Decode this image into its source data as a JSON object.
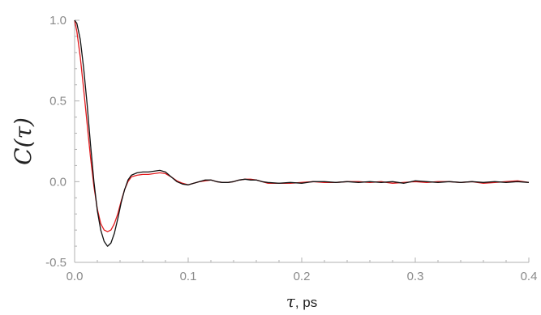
{
  "chart_data": {
    "type": "line",
    "title": "",
    "xlabel": "τ, ps",
    "ylabel": "C(τ)",
    "xlim": [
      0.0,
      0.4
    ],
    "ylim": [
      -0.5,
      1.0
    ],
    "xticks": [
      "0.0",
      "0.1",
      "0.2",
      "0.3",
      "0.4"
    ],
    "yticks": [
      "-0.5",
      "0.0",
      "0.5",
      "1.0"
    ],
    "grid": false,
    "legend": "none",
    "series": [
      {
        "color": "#111111",
        "x": [
          0.0,
          0.002,
          0.005,
          0.008,
          0.011,
          0.014,
          0.017,
          0.02,
          0.023,
          0.026,
          0.029,
          0.032,
          0.035,
          0.038,
          0.041,
          0.044,
          0.047,
          0.05,
          0.055,
          0.06,
          0.065,
          0.07,
          0.075,
          0.08,
          0.085,
          0.09,
          0.095,
          0.1,
          0.105,
          0.11,
          0.115,
          0.12,
          0.125,
          0.13,
          0.135,
          0.14,
          0.145,
          0.15,
          0.155,
          0.16,
          0.165,
          0.17,
          0.18,
          0.19,
          0.2,
          0.21,
          0.22,
          0.23,
          0.24,
          0.25,
          0.26,
          0.27,
          0.28,
          0.29,
          0.3,
          0.31,
          0.32,
          0.33,
          0.34,
          0.35,
          0.36,
          0.37,
          0.38,
          0.39,
          0.4
        ],
        "y": [
          1.0,
          0.98,
          0.88,
          0.7,
          0.48,
          0.23,
          0.0,
          -0.18,
          -0.3,
          -0.37,
          -0.4,
          -0.38,
          -0.32,
          -0.23,
          -0.13,
          -0.05,
          0.01,
          0.04,
          0.055,
          0.06,
          0.06,
          0.065,
          0.07,
          0.06,
          0.03,
          0.0,
          -0.015,
          -0.02,
          -0.01,
          0.0,
          0.01,
          0.01,
          0.0,
          -0.005,
          -0.005,
          0.0,
          0.01,
          0.015,
          0.01,
          0.01,
          0.0,
          -0.005,
          -0.01,
          -0.005,
          -0.01,
          0.0,
          0.0,
          -0.005,
          0.0,
          -0.005,
          0.0,
          -0.005,
          0.0,
          -0.01,
          0.005,
          0.0,
          -0.005,
          0.0,
          -0.005,
          0.0,
          -0.005,
          0.0,
          -0.005,
          0.0,
          -0.005
        ]
      },
      {
        "color": "#e3191c",
        "x": [
          0.0,
          0.002,
          0.005,
          0.008,
          0.011,
          0.014,
          0.017,
          0.02,
          0.023,
          0.026,
          0.029,
          0.032,
          0.035,
          0.038,
          0.041,
          0.044,
          0.047,
          0.05,
          0.055,
          0.06,
          0.065,
          0.07,
          0.075,
          0.08,
          0.085,
          0.09,
          0.095,
          0.1,
          0.105,
          0.11,
          0.115,
          0.12,
          0.125,
          0.13,
          0.135,
          0.14,
          0.145,
          0.15,
          0.155,
          0.16,
          0.165,
          0.17,
          0.18,
          0.19,
          0.2,
          0.21,
          0.22,
          0.23,
          0.24,
          0.25,
          0.26,
          0.27,
          0.28,
          0.29,
          0.3,
          0.31,
          0.32,
          0.33,
          0.34,
          0.35,
          0.36,
          0.37,
          0.38,
          0.39,
          0.4
        ],
        "y": [
          1.0,
          0.93,
          0.77,
          0.57,
          0.36,
          0.15,
          -0.03,
          -0.17,
          -0.26,
          -0.3,
          -0.31,
          -0.3,
          -0.26,
          -0.2,
          -0.12,
          -0.05,
          0.0,
          0.03,
          0.04,
          0.045,
          0.045,
          0.05,
          0.055,
          0.05,
          0.03,
          0.005,
          -0.01,
          -0.02,
          -0.01,
          0.0,
          0.005,
          0.01,
          0.0,
          -0.005,
          -0.005,
          0.0,
          0.01,
          0.015,
          0.015,
          0.01,
          0.0,
          -0.01,
          -0.01,
          -0.01,
          -0.005,
          0.0,
          -0.005,
          -0.005,
          0.0,
          0.0,
          -0.005,
          0.0,
          -0.01,
          -0.005,
          0.0,
          -0.005,
          0.0,
          0.0,
          -0.005,
          0.0,
          -0.01,
          -0.005,
          0.0,
          0.005,
          -0.005
        ]
      }
    ]
  }
}
